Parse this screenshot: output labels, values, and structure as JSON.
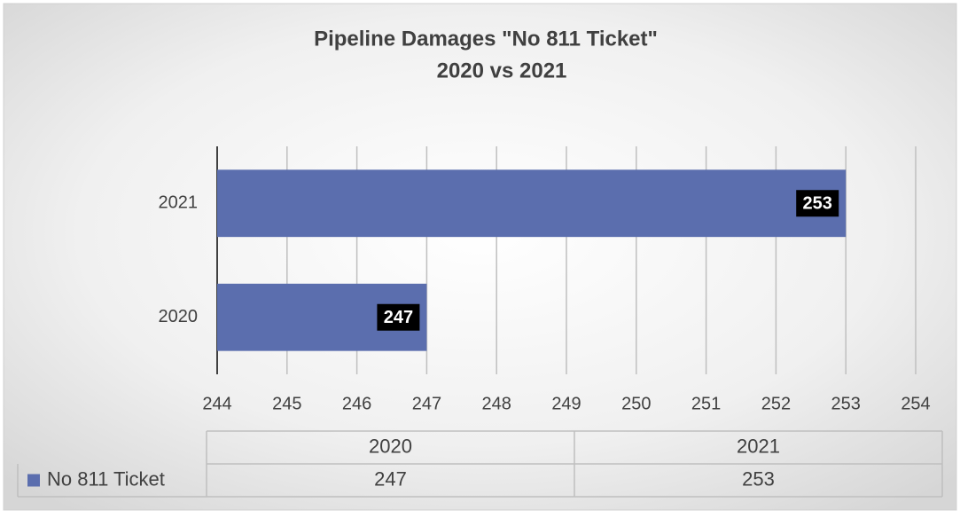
{
  "chart_data": {
    "type": "bar",
    "orientation": "horizontal",
    "title": [
      "Pipeline Damages \"No 811 Ticket\"",
      "2020 vs 2021"
    ],
    "categories": [
      "2020",
      "2021"
    ],
    "series": [
      {
        "name": "No 811 Ticket",
        "color": "#5b6eae",
        "values": [
          247,
          253
        ]
      }
    ],
    "xlim": [
      244,
      254
    ],
    "xticks": [
      244,
      245,
      246,
      247,
      248,
      249,
      250,
      251,
      252,
      253,
      254
    ],
    "grid": true,
    "data_labels": true,
    "data_table": true
  }
}
